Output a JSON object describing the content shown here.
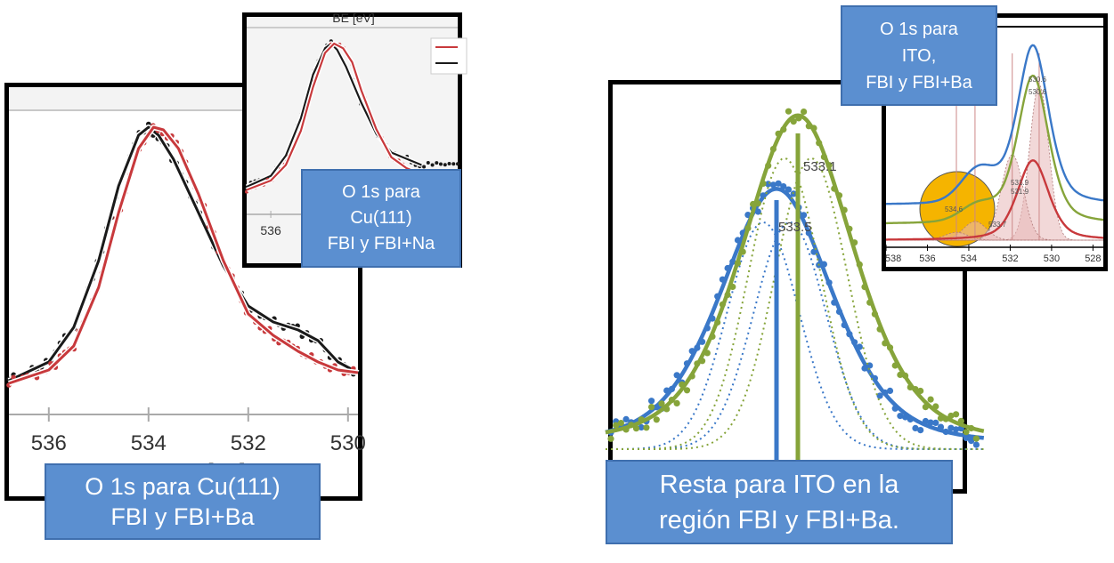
{
  "panel_left": {
    "tick_labels": [
      "536",
      "534",
      "532",
      "530"
    ],
    "axis_label_partial": "BE [eV]",
    "callout": [
      "O 1s para Cu(111)",
      "FBI y FBI+Ba"
    ]
  },
  "panel_left_inset": {
    "top_label_partial": "BE [eV]",
    "tick_labels": [
      "536"
    ],
    "callout": [
      "O 1s para",
      "Cu(111)",
      "FBI y FBI+Na"
    ]
  },
  "panel_right": {
    "peak_labels": [
      "533.1",
      "533.5"
    ],
    "callout": [
      "Resta para ITO en la",
      "región FBI y FBI+Ba."
    ]
  },
  "panel_right_inset": {
    "tick_labels": [
      "538",
      "536",
      "534",
      "532",
      "530",
      "528"
    ],
    "peak_labels": [
      "530.6",
      "530.6",
      "531.9",
      "531.9",
      "533.7",
      "534.6"
    ],
    "callout": [
      "O 1s para",
      "ITO,",
      "FBI y FBI+Ba"
    ]
  },
  "colors": {
    "black_series": "#1a1a1a",
    "red_series": "#c8393c",
    "blue_series": "#3a78c8",
    "green_series": "#86a43a",
    "callout_fill": "#5b8fd0",
    "fit_fill": "#e8b8b8",
    "circle_highlight": "#f5b400"
  },
  "chart_data": [
    {
      "type": "line",
      "id": "cu111-fbi-ba",
      "xlabel": "BE [eV]",
      "xlim": [
        536.8,
        529.8
      ],
      "x_ticks": [
        536,
        534,
        532,
        530
      ],
      "series": [
        {
          "color": "black",
          "x": [
            536.8,
            536.0,
            535.5,
            535.0,
            534.6,
            534.2,
            534.0,
            533.8,
            533.5,
            533.0,
            532.5,
            532.0,
            531.5,
            531.0,
            530.6,
            530.2,
            529.8
          ],
          "y": [
            0.05,
            0.12,
            0.25,
            0.5,
            0.78,
            0.97,
            1.0,
            0.97,
            0.88,
            0.68,
            0.48,
            0.33,
            0.27,
            0.24,
            0.2,
            0.12,
            0.08
          ]
        },
        {
          "color": "red",
          "x": [
            536.8,
            536.0,
            535.5,
            535.0,
            534.6,
            534.2,
            533.9,
            533.7,
            533.4,
            533.0,
            532.5,
            532.0,
            531.5,
            531.0,
            530.6,
            530.2,
            529.8
          ],
          "y": [
            0.04,
            0.09,
            0.18,
            0.4,
            0.68,
            0.92,
            1.0,
            0.99,
            0.92,
            0.75,
            0.5,
            0.3,
            0.22,
            0.16,
            0.12,
            0.09,
            0.08
          ]
        }
      ]
    },
    {
      "type": "line",
      "id": "cu111-fbi-na-inset",
      "xlim": [
        536.8,
        529.8
      ],
      "x_ticks": [
        536
      ],
      "series": [
        {
          "color": "black",
          "x": [
            536.8,
            536.0,
            535.5,
            535.0,
            534.6,
            534.2,
            534.0,
            533.8,
            533.5,
            533.0,
            532.5,
            532.0,
            531.5,
            531.0
          ],
          "y": [
            0.08,
            0.15,
            0.28,
            0.52,
            0.8,
            0.97,
            1.0,
            0.96,
            0.85,
            0.62,
            0.42,
            0.3,
            0.26,
            0.22
          ]
        },
        {
          "color": "red",
          "x": [
            536.8,
            536.0,
            535.5,
            535.0,
            534.6,
            534.2,
            533.9,
            533.6,
            533.3,
            533.0,
            532.5,
            532.0,
            531.5,
            531.0
          ],
          "y": [
            0.06,
            0.12,
            0.22,
            0.44,
            0.72,
            0.94,
            1.0,
            0.97,
            0.88,
            0.7,
            0.45,
            0.27,
            0.2,
            0.16
          ]
        }
      ]
    },
    {
      "type": "line",
      "id": "ito-difference",
      "peaks": [
        {
          "x": 533.1,
          "label": "533.1",
          "color": "green"
        },
        {
          "x": 533.5,
          "label": "533.5",
          "color": "blue"
        }
      ],
      "series": [
        {
          "color": "blue",
          "center": 533.5,
          "height": 0.78
        },
        {
          "color": "green",
          "center": 533.1,
          "height": 1.0
        }
      ]
    },
    {
      "type": "line",
      "id": "ito-fbi-ba-inset",
      "xlim": [
        538,
        527.5
      ],
      "x_ticks": [
        538,
        536,
        534,
        532,
        530,
        528
      ],
      "peaks": [
        530.6,
        531.9,
        533.7,
        534.6
      ],
      "series": [
        {
          "color": "blue"
        },
        {
          "color": "green"
        },
        {
          "color": "red"
        }
      ]
    }
  ]
}
